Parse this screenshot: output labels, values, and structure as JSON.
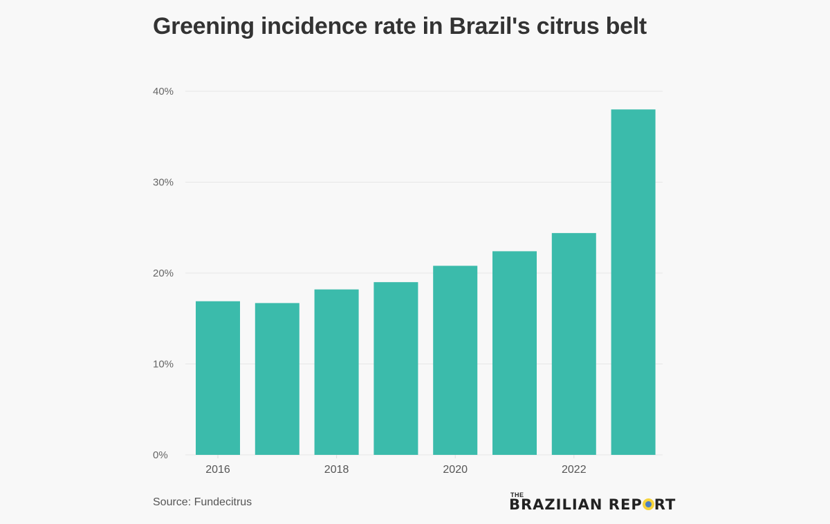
{
  "chart_data": {
    "type": "bar",
    "title": "Greening incidence rate in Brazil's citrus belt",
    "categories": [
      "2016",
      "2017",
      "2018",
      "2019",
      "2020",
      "2021",
      "2022",
      "2023"
    ],
    "values": [
      16.9,
      16.7,
      18.2,
      19.0,
      20.8,
      22.4,
      24.4,
      38.0
    ],
    "unit": "%",
    "xlabel": "",
    "ylabel": "",
    "ylim": [
      0,
      40
    ],
    "yticks": [
      0,
      10,
      20,
      30,
      40
    ],
    "ytick_labels": [
      "0%",
      "10%",
      "20%",
      "30%",
      "40%"
    ],
    "xtick_labels": [
      "2016",
      "2018",
      "2020",
      "2022"
    ],
    "grid": true,
    "legend": "none",
    "bar_color": "#3bbbab"
  },
  "source": "Source: Fundecitrus",
  "logo": {
    "the": "THE",
    "main_before_o": "BRAZILIAN REP",
    "main_after_o": "RT"
  }
}
